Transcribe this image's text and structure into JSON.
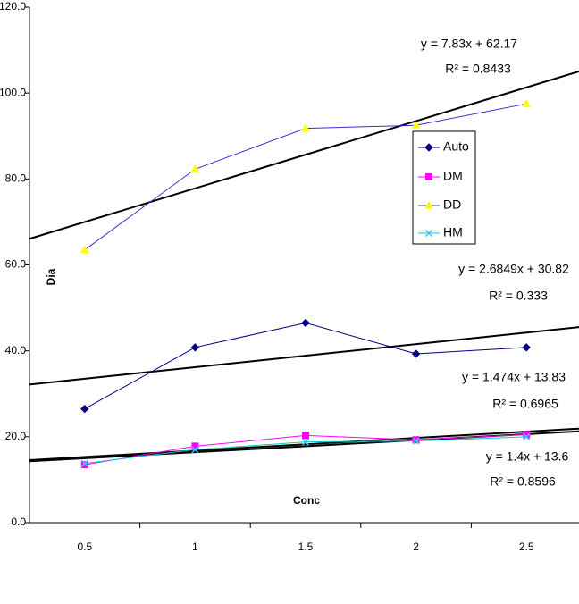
{
  "chart_data": {
    "type": "line",
    "x_axis_label": "Conc",
    "y_axis_label": "Dia",
    "categories": [
      "0.5",
      "1",
      "1.5",
      "2",
      "2.5"
    ],
    "ylim": [
      0,
      120
    ],
    "yticks": [
      {
        "value": 0,
        "label": "0.0"
      },
      {
        "value": 20,
        "label": "20.0"
      },
      {
        "value": 40,
        "label": "40.0"
      },
      {
        "value": 60,
        "label": "60.0"
      },
      {
        "value": 80,
        "label": "80.0"
      },
      {
        "value": 100,
        "label": "100.0"
      },
      {
        "value": 120,
        "label": "120.0"
      }
    ],
    "grid": false,
    "series": [
      {
        "name": "Auto",
        "color": "#000080",
        "marker_color": "#000080",
        "marker": "diamond",
        "values": [
          26.5,
          40.8,
          46.5,
          39.3,
          40.8
        ]
      },
      {
        "name": "DM",
        "color": "#ff00ff",
        "marker_color": "#ff00ff",
        "marker": "square",
        "values": [
          13.5,
          17.8,
          20.3,
          19.3,
          20.5
        ]
      },
      {
        "name": "DD",
        "color": "#3333cc",
        "marker_color": "#ffff00",
        "marker": "triangle",
        "values": [
          63.5,
          82.3,
          91.8,
          92.5,
          97.5
        ]
      },
      {
        "name": "HM",
        "color": "#00cccc",
        "marker_color": "#33ccff",
        "marker": "x",
        "values": [
          13.8,
          17.0,
          18.8,
          19.0,
          20.0
        ]
      }
    ],
    "trendlines": [
      {
        "equation": "y = 2.6849x + 30.82",
        "r2": "R² = 0.333",
        "slope": 2.6849,
        "intercept": 30.82
      },
      {
        "equation": "y = 1.474x + 13.83",
        "r2": "R² = 0.6965",
        "slope": 1.474,
        "intercept": 13.83
      },
      {
        "equation": "y = 7.83x + 62.17",
        "r2": "R² = 0.8433",
        "slope": 7.83,
        "intercept": 62.17
      },
      {
        "equation": "y = 1.4x + 13.6",
        "r2": "R² = 0.8596",
        "slope": 1.4,
        "intercept": 13.6
      }
    ]
  }
}
